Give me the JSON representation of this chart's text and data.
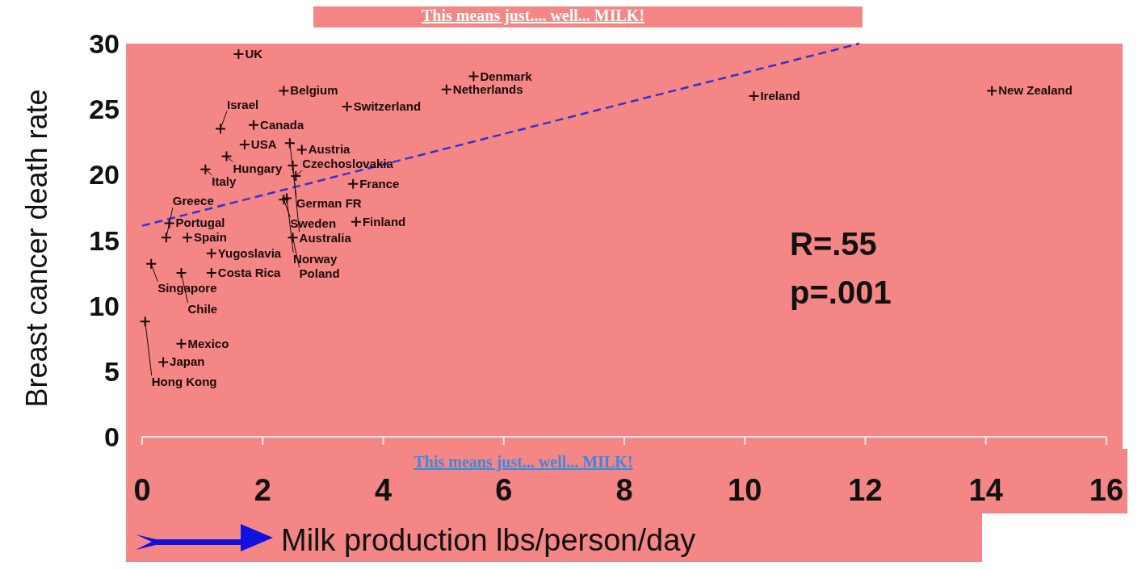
{
  "chart_data": {
    "type": "scatter",
    "xlabel": "Milk production lbs/person/day",
    "ylabel": "Breast cancer death rate",
    "annotations": [
      "This means just.... well... MILK!",
      "This means just... well... MILK!",
      "R=.55",
      "p=.001",
      {
        "text": "UK",
        "x": 1.6,
        "y": 29.2
      },
      {
        "text": "Belgium",
        "x": 2.35,
        "y": 26.4
      },
      {
        "text": "Switzerland",
        "x": 3.4,
        "y": 25.2
      },
      {
        "text": "Denmark",
        "x": 5.5,
        "y": 27.5
      },
      {
        "text": "Netherlands",
        "x": 5.05,
        "y": 26.5
      },
      {
        "text": "Ireland",
        "x": 10.15,
        "y": 26.0
      },
      {
        "text": "New Zealand",
        "x": 14.1,
        "y": 26.4
      },
      {
        "text": "Israel",
        "x": 1.3,
        "y": 23.5
      },
      {
        "text": "Canada",
        "x": 1.85,
        "y": 23.8
      },
      {
        "text": "USA",
        "x": 1.7,
        "y": 22.3
      },
      {
        "text": "German FR",
        "x": 2.45,
        "y": 22.4
      },
      {
        "text": "Austria",
        "x": 2.65,
        "y": 21.9
      },
      {
        "text": "Hungary",
        "x": 1.4,
        "y": 21.4
      },
      {
        "text": "Italy",
        "x": 1.05,
        "y": 20.4
      },
      {
        "text": "Australia",
        "x": 2.5,
        "y": 20.7
      },
      {
        "text": "Czechoslovakia",
        "x": 2.55,
        "y": 19.9
      },
      {
        "text": "France",
        "x": 3.5,
        "y": 19.3
      },
      {
        "text": "Sweden",
        "x": 2.35,
        "y": 18.1
      },
      {
        "text": "Norway",
        "x": 2.4,
        "y": 18.2
      },
      {
        "text": "Portugal",
        "x": 0.45,
        "y": 16.3
      },
      {
        "text": "Greece",
        "x": 0.4,
        "y": 15.2
      },
      {
        "text": "Spain",
        "x": 0.75,
        "y": 15.2
      },
      {
        "text": "Poland",
        "x": 2.5,
        "y": 15.2
      },
      {
        "text": "Finland",
        "x": 3.55,
        "y": 16.4
      },
      {
        "text": "Yugoslavia",
        "x": 1.15,
        "y": 14.0
      },
      {
        "text": "Singapore",
        "x": 0.15,
        "y": 13.2
      },
      {
        "text": "Chile",
        "x": 0.65,
        "y": 12.5
      },
      {
        "text": "Costa Rica",
        "x": 1.15,
        "y": 12.5
      },
      {
        "text": "Hong Kong",
        "x": 0.05,
        "y": 8.8
      },
      {
        "text": "Mexico",
        "x": 0.65,
        "y": 7.1
      },
      {
        "text": "Japan",
        "x": 0.35,
        "y": 5.7
      }
    ],
    "xlim": [
      0,
      16
    ],
    "ylim": [
      0,
      30
    ],
    "xticks": [
      0,
      2,
      4,
      6,
      8,
      10,
      12,
      14,
      16
    ],
    "yticks": [
      0,
      5,
      10,
      15,
      20,
      25,
      30
    ],
    "series": [
      {
        "color": "#1a0a0a",
        "marker": "cross",
        "x": [
          1.6,
          2.35,
          3.4,
          5.5,
          5.05,
          10.15,
          14.1,
          1.3,
          1.85,
          1.7,
          2.45,
          2.65,
          1.4,
          1.05,
          2.5,
          2.55,
          3.5,
          2.35,
          2.4,
          0.45,
          0.4,
          0.75,
          2.5,
          3.55,
          1.15,
          0.15,
          0.65,
          1.15,
          0.05,
          0.65,
          0.35
        ],
        "values": [
          29.2,
          26.4,
          25.2,
          27.5,
          26.5,
          26.0,
          26.4,
          23.5,
          23.8,
          22.3,
          22.4,
          21.9,
          21.4,
          20.4,
          20.7,
          19.9,
          19.3,
          18.1,
          18.2,
          16.3,
          15.2,
          15.2,
          15.2,
          16.4,
          14.0,
          13.2,
          12.5,
          12.5,
          8.8,
          7.1,
          5.7
        ]
      },
      {
        "type": "line",
        "color": "#3333cc",
        "line_style": "dashed",
        "x": [
          0,
          11.9
        ],
        "values": [
          16.1,
          30
        ]
      }
    ]
  }
}
